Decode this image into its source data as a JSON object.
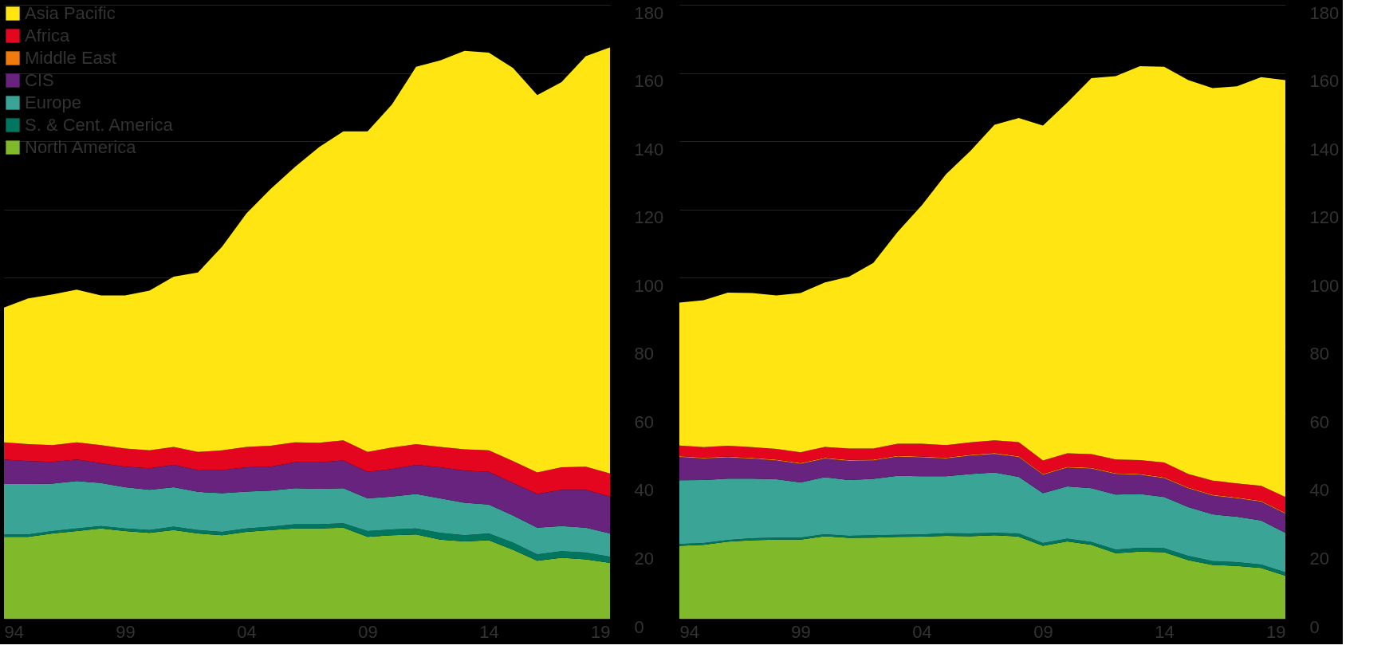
{
  "chart_data": [
    {
      "type": "area",
      "stacked": true,
      "grid": "y",
      "legend": "top left",
      "x": [
        1994,
        1995,
        1996,
        1997,
        1998,
        1999,
        2000,
        2001,
        2002,
        2003,
        2004,
        2005,
        2006,
        2007,
        2008,
        2009,
        2010,
        2011,
        2012,
        2013,
        2014,
        2015,
        2016,
        2017,
        2018,
        2019
      ],
      "xlim": [
        1994,
        2019
      ],
      "xticks": [
        {
          "value": 1994,
          "label": "94"
        },
        {
          "value": 1999,
          "label": "99"
        },
        {
          "value": 2004,
          "label": "04"
        },
        {
          "value": 2009,
          "label": "09"
        },
        {
          "value": 2014,
          "label": "14"
        },
        {
          "value": 2019,
          "label": "19"
        }
      ],
      "ylim": [
        0,
        180
      ],
      "yticks": [
        0,
        20,
        40,
        60,
        80,
        100,
        120,
        140,
        160,
        180
      ],
      "series": [
        {
          "name": "North America",
          "color": "#80b92a",
          "values": [
            24.0,
            24.0,
            25.0,
            25.7,
            26.5,
            25.7,
            25.2,
            26.0,
            25.0,
            24.5,
            25.5,
            26.0,
            26.5,
            26.5,
            26.7,
            24.0,
            24.5,
            24.7,
            23.2,
            22.7,
            23.0,
            20.2,
            17.0,
            17.9,
            17.4,
            16.4
          ]
        },
        {
          "name": "S. & Cent. America",
          "color": "#00765e",
          "values": [
            0.7,
            0.7,
            0.7,
            0.8,
            0.7,
            0.8,
            0.8,
            1.0,
            1.0,
            1.0,
            1.0,
            1.0,
            1.2,
            1.2,
            1.3,
            1.7,
            1.7,
            1.8,
            2.0,
            1.8,
            2.0,
            2.1,
            1.9,
            1.9,
            2.0,
            1.8
          ]
        },
        {
          "name": "Europe",
          "color": "#3aa597",
          "values": [
            14.8,
            14.8,
            13.9,
            13.9,
            12.6,
            12.1,
            11.8,
            11.6,
            11.2,
            11.3,
            10.8,
            10.6,
            10.6,
            10.4,
            10.3,
            9.6,
            9.6,
            10.1,
            10.1,
            9.5,
            8.5,
            8.0,
            7.8,
            7.4,
            7.3,
            6.8
          ]
        },
        {
          "name": "CIS",
          "color": "#68237f",
          "values": [
            7.2,
            6.7,
            6.4,
            6.3,
            5.8,
            6.0,
            6.3,
            6.5,
            6.4,
            6.8,
            7.1,
            7.0,
            7.6,
            7.8,
            8.1,
            7.8,
            8.1,
            8.5,
            9.1,
            9.4,
            9.6,
            9.5,
            9.9,
            10.6,
            11.1,
            10.8
          ]
        },
        {
          "name": "Middle East",
          "color": "#f07a0b",
          "values": [
            null,
            null,
            null,
            null,
            null,
            null,
            null,
            null,
            null,
            null,
            null,
            null,
            null,
            null,
            null,
            null,
            null,
            null,
            null,
            null,
            null,
            null,
            null,
            null,
            null,
            null
          ]
        },
        {
          "name": "Africa",
          "color": "#e4061f",
          "values": [
            5.0,
            5.0,
            4.9,
            5.0,
            5.3,
            5.3,
            5.3,
            5.3,
            5.3,
            5.8,
            6.0,
            6.1,
            5.8,
            5.7,
            5.9,
            5.8,
            6.3,
            6.1,
            6.0,
            6.3,
            6.3,
            6.4,
            6.3,
            6.6,
            6.8,
            6.8
          ]
        },
        {
          "name": "Asia Pacific",
          "color": "#ffe512",
          "values": [
            39.5,
            42.7,
            44.2,
            44.8,
            43.9,
            44.9,
            46.8,
            49.9,
            52.6,
            59.7,
            68.4,
            75.3,
            80.7,
            86.7,
            90.6,
            94.0,
            100.5,
            110.6,
            113.3,
            116.8,
            116.6,
            115.3,
            110.6,
            112.9,
            120.3,
            124.9
          ]
        }
      ]
    },
    {
      "type": "area",
      "stacked": true,
      "grid": "y",
      "x": [
        1994,
        1995,
        1996,
        1997,
        1998,
        1999,
        2000,
        2001,
        2002,
        2003,
        2004,
        2005,
        2006,
        2007,
        2008,
        2009,
        2010,
        2011,
        2012,
        2013,
        2014,
        2015,
        2016,
        2017,
        2018,
        2019
      ],
      "xlim": [
        1994,
        2019
      ],
      "xticks": [
        {
          "value": 1994,
          "label": "94"
        },
        {
          "value": 1999,
          "label": "99"
        },
        {
          "value": 2004,
          "label": "04"
        },
        {
          "value": 2009,
          "label": "09"
        },
        {
          "value": 2014,
          "label": "14"
        },
        {
          "value": 2019,
          "label": "19"
        }
      ],
      "ylim": [
        0,
        180
      ],
      "yticks": [
        0,
        20,
        40,
        60,
        80,
        100,
        120,
        140,
        160,
        180
      ],
      "series": [
        {
          "color": "#80b92a",
          "values": [
            21.4,
            21.7,
            22.6,
            23.0,
            23.2,
            23.2,
            24.2,
            23.7,
            23.8,
            24.0,
            24.1,
            24.3,
            24.2,
            24.5,
            24.1,
            21.4,
            22.7,
            21.7,
            19.2,
            19.7,
            19.5,
            17.2,
            15.8,
            15.5,
            14.9,
            12.6
          ]
        },
        {
          "color": "#00765e",
          "values": [
            0.5,
            0.5,
            0.5,
            0.6,
            0.6,
            0.6,
            0.6,
            0.6,
            0.7,
            0.6,
            0.6,
            0.8,
            0.8,
            0.7,
            0.9,
            0.8,
            0.8,
            0.8,
            1.1,
            1.1,
            1.2,
            1.2,
            1.1,
            1.1,
            1.0,
            1.0
          ]
        },
        {
          "color": "#3aa597",
          "values": [
            18.7,
            18.5,
            18.0,
            17.5,
            17.1,
            16.2,
            16.7,
            16.4,
            16.5,
            17.3,
            17.1,
            16.7,
            17.4,
            17.7,
            16.6,
            14.6,
            15.3,
            15.8,
            16.1,
            15.8,
            15.0,
            14.3,
            13.7,
            13.3,
            12.9,
            11.6
          ]
        },
        {
          "color": "#68237f",
          "values": [
            6.8,
            6.3,
            6.2,
            5.8,
            5.5,
            5.4,
            5.4,
            5.6,
            5.4,
            5.6,
            5.5,
            5.2,
            5.4,
            5.4,
            5.8,
            5.4,
            5.5,
            5.7,
            6.0,
            5.6,
            5.5,
            5.5,
            5.5,
            5.4,
            5.5,
            5.6
          ]
        },
        {
          "color": "#f07a0b",
          "values": [
            0.3,
            0.3,
            0.3,
            0.3,
            0.3,
            0.3,
            0.3,
            0.3,
            0.3,
            0.3,
            0.3,
            0.3,
            0.3,
            0.3,
            0.3,
            0.3,
            0.3,
            0.3,
            0.3,
            0.3,
            0.3,
            0.3,
            0.3,
            0.3,
            0.3,
            0.3
          ]
        },
        {
          "color": "#e4061f",
          "values": [
            3.1,
            3.0,
            3.1,
            3.1,
            3.1,
            3.1,
            3.2,
            3.3,
            3.2,
            3.5,
            3.7,
            3.6,
            3.6,
            3.7,
            4.1,
            3.9,
            3.9,
            4.0,
            4.0,
            4.0,
            4.3,
            3.9,
            4.1,
            4.1,
            4.4,
            4.6
          ]
        },
        {
          "color": "#ffe512",
          "values": [
            41.9,
            43.1,
            44.9,
            45.2,
            45.0,
            46.7,
            48.2,
            50.4,
            54.4,
            62.1,
            69.9,
            79.4,
            85.4,
            92.5,
            95.0,
            98.2,
            102.8,
            110.2,
            112.4,
            115.5,
            116.0,
            115.5,
            115.1,
            116.4,
            119.8,
            122.2
          ]
        }
      ]
    }
  ]
}
